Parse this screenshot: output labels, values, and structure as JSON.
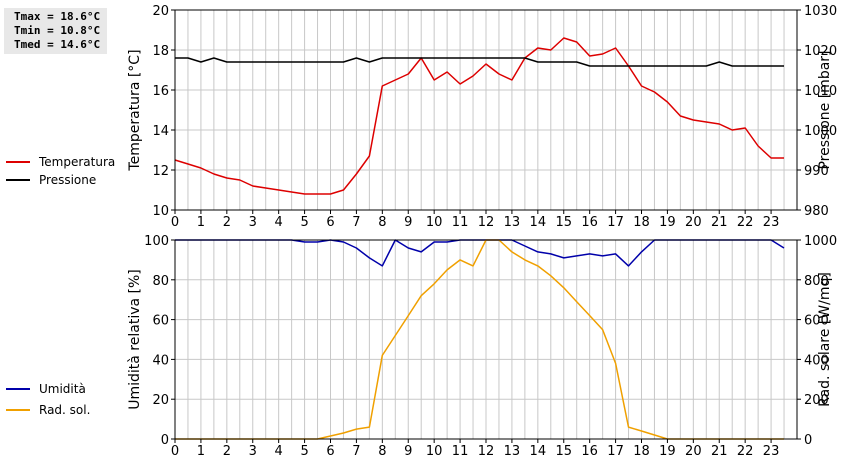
{
  "stats": {
    "tmax": "Tmax = 18.6°C",
    "tmin": "Tmin = 10.8°C",
    "tmed": "Tmed = 14.6°C"
  },
  "colors": {
    "temperature": "#dd0000",
    "pressure": "#000000",
    "humidity": "#0000aa",
    "radiation": "#f0a000",
    "grid": "#c8c8c8"
  },
  "chart_data": [
    {
      "type": "line",
      "xlim": [
        0,
        24
      ],
      "x_ticks": [
        0,
        1,
        2,
        3,
        4,
        5,
        6,
        7,
        8,
        9,
        10,
        11,
        12,
        13,
        14,
        15,
        16,
        17,
        18,
        19,
        20,
        21,
        22,
        23
      ],
      "ylim_left": [
        10,
        20
      ],
      "y_ticks_left": [
        10,
        12,
        14,
        16,
        18,
        20
      ],
      "ylabel_left": "Temperatura [°C]",
      "ylim_right": [
        980,
        1030
      ],
      "y_ticks_right": [
        980,
        990,
        1000,
        1010,
        1020,
        1030
      ],
      "ylabel_right": "Pressione [mbar]",
      "grid": true,
      "legend_placement": "left",
      "series": [
        {
          "name": "Temperatura",
          "axis": "left",
          "x": [
            0,
            0.5,
            1,
            1.5,
            2,
            2.5,
            3,
            3.5,
            4,
            4.5,
            5,
            5.5,
            6,
            6.5,
            7,
            7.5,
            8,
            8.5,
            9,
            9.5,
            10,
            10.5,
            11,
            11.5,
            12,
            12.5,
            13,
            13.5,
            14,
            14.5,
            15,
            15.5,
            16,
            16.5,
            17,
            17.5,
            18,
            18.5,
            19,
            19.5,
            20,
            20.5,
            21,
            21.5,
            22,
            22.5,
            23,
            23.5
          ],
          "values": [
            12.5,
            12.3,
            12.1,
            11.8,
            11.6,
            11.5,
            11.2,
            11.1,
            11.0,
            10.9,
            10.8,
            10.8,
            10.8,
            11.0,
            11.8,
            12.7,
            16.2,
            16.5,
            16.8,
            17.6,
            16.5,
            16.9,
            16.3,
            16.7,
            17.3,
            16.8,
            16.5,
            17.6,
            18.1,
            18.0,
            18.6,
            18.4,
            17.7,
            17.8,
            18.1,
            17.2,
            16.2,
            15.9,
            15.4,
            14.7,
            14.5,
            14.4,
            14.3,
            14.0,
            14.1,
            13.2,
            12.6,
            12.6
          ]
        },
        {
          "name": "Pressione",
          "axis": "right",
          "x": [
            0,
            0.5,
            1,
            1.5,
            2,
            2.5,
            3,
            3.5,
            4,
            4.5,
            5,
            5.5,
            6,
            6.5,
            7,
            7.5,
            8,
            8.5,
            9,
            9.5,
            10,
            10.5,
            11,
            11.5,
            12,
            12.5,
            13,
            13.5,
            14,
            14.5,
            15,
            15.5,
            16,
            16.5,
            17,
            17.5,
            18,
            18.5,
            19,
            19.5,
            20,
            20.5,
            21,
            21.5,
            22,
            22.5,
            23,
            23.5
          ],
          "values": [
            1018,
            1018,
            1017,
            1018,
            1017,
            1017,
            1017,
            1017,
            1017,
            1017,
            1017,
            1017,
            1017,
            1017,
            1018,
            1017,
            1018,
            1018,
            1018,
            1018,
            1018,
            1018,
            1018,
            1018,
            1018,
            1018,
            1018,
            1018,
            1017,
            1017,
            1017,
            1017,
            1016,
            1016,
            1016,
            1016,
            1016,
            1016,
            1016,
            1016,
            1016,
            1016,
            1017,
            1016,
            1016,
            1016,
            1016,
            1016
          ]
        }
      ]
    },
    {
      "type": "line",
      "xlim": [
        0,
        24
      ],
      "x_ticks": [
        0,
        1,
        2,
        3,
        4,
        5,
        6,
        7,
        8,
        9,
        10,
        11,
        12,
        13,
        14,
        15,
        16,
        17,
        18,
        19,
        20,
        21,
        22,
        23
      ],
      "ylim_left": [
        0,
        100
      ],
      "y_ticks_left": [
        0,
        20,
        40,
        60,
        80,
        100
      ],
      "ylabel_left": "Umidità relativa [%]",
      "ylim_right": [
        0,
        1000
      ],
      "y_ticks_right": [
        0,
        200,
        400,
        600,
        800,
        1000
      ],
      "ylabel_right": "Rad. solare [W/mq]",
      "grid": true,
      "legend_placement": "left",
      "series": [
        {
          "name": "Umidità",
          "axis": "left",
          "x": [
            0,
            0.5,
            1,
            1.5,
            2,
            2.5,
            3,
            3.5,
            4,
            4.5,
            5,
            5.5,
            6,
            6.5,
            7,
            7.5,
            8,
            8.5,
            9,
            9.5,
            10,
            10.5,
            11,
            11.5,
            12,
            12.5,
            13,
            13.5,
            14,
            14.5,
            15,
            15.5,
            16,
            16.5,
            17,
            17.5,
            18,
            18.5,
            19,
            19.5,
            20,
            20.5,
            21,
            21.5,
            22,
            22.5,
            23,
            23.5
          ],
          "values": [
            100,
            100,
            100,
            100,
            100,
            100,
            100,
            100,
            100,
            100,
            99,
            99,
            100,
            99,
            96,
            91,
            87,
            100,
            96,
            94,
            99,
            99,
            100,
            100,
            100,
            100,
            100,
            97,
            94,
            93,
            91,
            92,
            93,
            92,
            93,
            87,
            94,
            100,
            100,
            100,
            100,
            100,
            100,
            100,
            100,
            100,
            100,
            96
          ]
        },
        {
          "name": "Rad. sol.",
          "axis": "right",
          "x": [
            0,
            0.5,
            1,
            1.5,
            2,
            2.5,
            3,
            3.5,
            4,
            4.5,
            5,
            5.5,
            6,
            6.5,
            7,
            7.5,
            8,
            8.5,
            9,
            9.5,
            10,
            10.5,
            11,
            11.5,
            12,
            12.5,
            13,
            13.5,
            14,
            14.5,
            15,
            15.5,
            16,
            16.5,
            17,
            17.5,
            18,
            18.5,
            19,
            19.5,
            20,
            20.5,
            21,
            21.5,
            22,
            22.5,
            23,
            23.5
          ],
          "values": [
            0,
            0,
            0,
            0,
            0,
            0,
            0,
            0,
            0,
            0,
            0,
            0,
            15,
            30,
            50,
            60,
            420,
            520,
            620,
            720,
            780,
            850,
            900,
            870,
            1000,
            1000,
            940,
            900,
            870,
            820,
            760,
            690,
            620,
            550,
            380,
            60,
            40,
            20,
            0,
            0,
            0,
            0,
            0,
            0,
            0,
            0,
            0,
            0
          ]
        }
      ]
    }
  ]
}
